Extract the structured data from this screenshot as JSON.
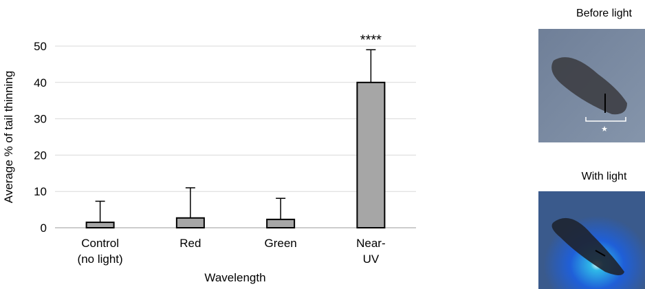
{
  "chart_data": {
    "type": "bar",
    "y_label": "Average % of tail thinning",
    "x_label": "Wavelength",
    "categories": [
      "Control\n(no light)",
      "Red",
      "Green",
      "Near-\nUV"
    ],
    "values": [
      1.5,
      2.7,
      2.3,
      40
    ],
    "errors": [
      5.8,
      8.3,
      5.8,
      9
    ],
    "value_annotations": [
      null,
      null,
      null,
      "****"
    ],
    "color": "#a6a6a6",
    "ylim": [
      0,
      50
    ],
    "yticks": [
      0,
      10,
      20,
      30,
      40,
      50
    ],
    "grid": true
  },
  "images": [
    {
      "title": "Before light"
    },
    {
      "title": "With light"
    }
  ]
}
